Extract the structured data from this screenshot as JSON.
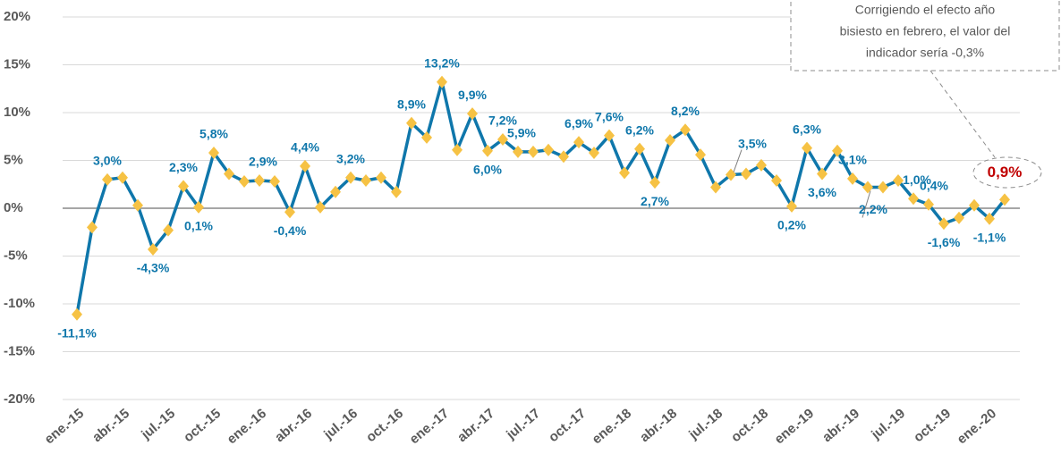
{
  "chart_data": {
    "type": "line",
    "categories": [
      "ene.-15",
      null,
      null,
      "abr.-15",
      null,
      null,
      "jul.-15",
      null,
      null,
      "oct.-15",
      null,
      null,
      "ene.-16",
      null,
      null,
      "abr.-16",
      null,
      null,
      "jul.-16",
      null,
      null,
      "oct.-16",
      null,
      null,
      "ene.-17",
      null,
      null,
      "abr.-17",
      null,
      null,
      "jul.-17",
      null,
      null,
      "oct.-17",
      null,
      null,
      "ene.-18",
      null,
      null,
      "abr.-18",
      null,
      null,
      "jul.-18",
      null,
      null,
      "oct.-18",
      null,
      null,
      "ene.-19",
      null,
      null,
      "abr.-19",
      null,
      null,
      "jul.-19",
      null,
      null,
      "oct.-19",
      null,
      null,
      "ene.-20",
      null
    ],
    "series": [
      {
        "name": null,
        "color": "#0f77ab",
        "marker_color": "#f6c244",
        "highlight_color": "#c00000",
        "values": [
          -11.1,
          -2.0,
          3.0,
          3.2,
          0.3,
          -4.3,
          -2.3,
          2.3,
          0.1,
          5.8,
          3.6,
          2.8,
          2.9,
          2.8,
          -0.4,
          4.4,
          0.1,
          1.7,
          3.2,
          2.9,
          3.2,
          1.7,
          8.9,
          7.4,
          13.2,
          6.1,
          9.9,
          6.0,
          7.2,
          5.9,
          5.9,
          6.1,
          5.4,
          6.9,
          5.8,
          7.6,
          3.7,
          6.2,
          2.7,
          7.1,
          8.2,
          5.6,
          2.2,
          3.5,
          3.6,
          4.5,
          2.9,
          0.2,
          6.3,
          3.6,
          6.0,
          3.1,
          2.2,
          2.2,
          2.9,
          1.0,
          0.4,
          -1.6,
          -1.0,
          0.3,
          -1.1,
          0.9
        ],
        "value_labels": [
          "-11,1%",
          null,
          "3,0%",
          null,
          null,
          "-4,3%",
          null,
          "2,3%",
          "0,1%",
          "5,8%",
          null,
          null,
          "2,9%",
          null,
          "-0,4%",
          "4,4%",
          null,
          null,
          "3,2%",
          null,
          null,
          null,
          "8,9%",
          null,
          "13,2%",
          null,
          "9,9%",
          "6,0%",
          "7,2%",
          "5,9%",
          null,
          null,
          null,
          "6,9%",
          null,
          "7,6%",
          null,
          "6,2%",
          "2,7%",
          null,
          "8,2%",
          null,
          null,
          "3,5%",
          null,
          null,
          null,
          "0,2%",
          "6,3%",
          "3,6%",
          null,
          "3,1%",
          "2,2%",
          null,
          null,
          "1,0%",
          "0,4%",
          "-1,6%",
          null,
          null,
          "-1,1%",
          "0,9%"
        ]
      }
    ],
    "ylim": [
      -20,
      20
    ],
    "yticks": [
      {
        "value": -20,
        "label": "-20%"
      },
      {
        "value": -15,
        "label": "-15%"
      },
      {
        "value": -10,
        "label": "-10%"
      },
      {
        "value": -5,
        "label": "-5%"
      },
      {
        "value": 0,
        "label": "0%"
      },
      {
        "value": 5,
        "label": "5%"
      },
      {
        "value": 10,
        "label": "10%"
      },
      {
        "value": 15,
        "label": "15%"
      },
      {
        "value": 20,
        "label": "20%"
      }
    ],
    "grid": true,
    "annotation": [
      "Corrigiendo el efecto año",
      "bisiesto en febrero, el valor del",
      "indicador sería -0,3%"
    ]
  }
}
